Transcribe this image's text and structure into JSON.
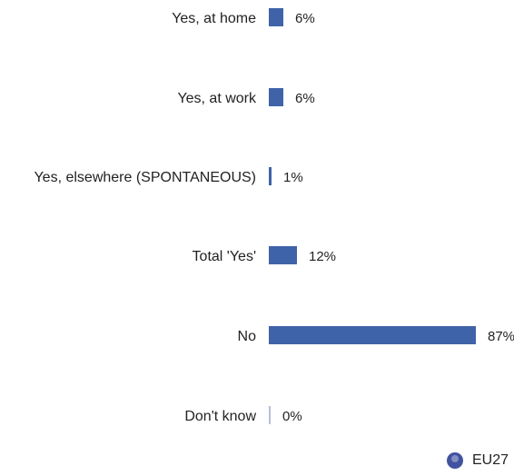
{
  "chart_data": {
    "type": "bar",
    "orientation": "horizontal",
    "categories": [
      "Yes, at home",
      "Yes, at work",
      "Yes, elsewhere (SPONTANEOUS)",
      "Total 'Yes'",
      "No",
      "Don't know"
    ],
    "series": [
      {
        "name": "EU27",
        "values": [
          6,
          6,
          1,
          12,
          87,
          0
        ]
      }
    ],
    "value_labels": [
      "6%",
      "6%",
      "1%",
      "12%",
      "87%",
      "0%"
    ],
    "xlim": [
      0,
      87
    ],
    "grid": false,
    "legend_position": "bottom-right",
    "colors": {
      "bar": "#3f63a8",
      "zero_bar": "#b7bfd8",
      "text": "#222222",
      "legend_dot": "#4152a0"
    }
  }
}
